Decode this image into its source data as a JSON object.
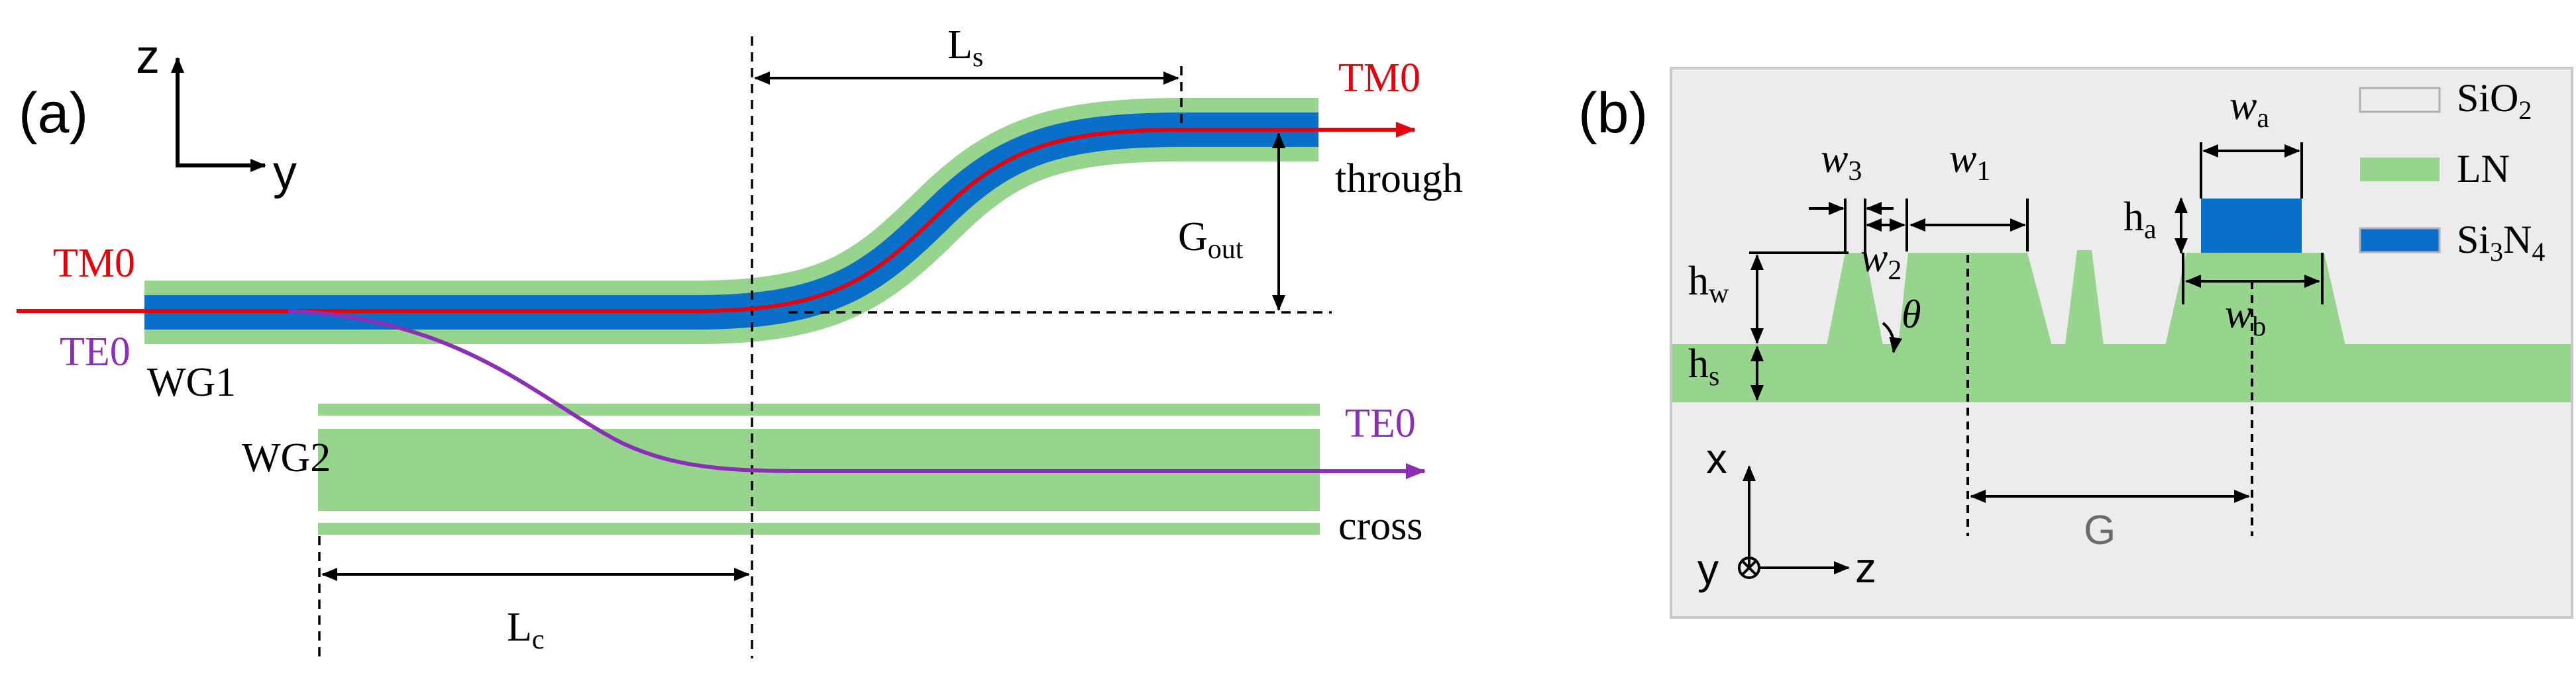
{
  "panel_a": {
    "panel_label": "(a)",
    "axis_z": "z",
    "axis_y": "y",
    "length_s": {
      "main": "L",
      "sub": "s"
    },
    "length_c": {
      "main": "L",
      "sub": "c"
    },
    "gap_out": {
      "main": "G",
      "sub": "out"
    },
    "input_mode_tm": "TM0",
    "input_mode_te": "TE0",
    "output_mode_tm": "TM0",
    "output_mode_te": "TE0",
    "port_through": "through",
    "port_cross": "cross",
    "wg1_label": "WG1",
    "wg2_label": "WG2"
  },
  "panel_b": {
    "panel_label": "(b)",
    "legend": [
      {
        "main": "SiO",
        "sub": "2",
        "color": "#ececec"
      },
      {
        "main": "LN",
        "sub": "",
        "color": "#97d48d"
      },
      {
        "main": "Si",
        "sub": "3",
        "main2": "N",
        "sub2": "4",
        "color": "#0a6fc8"
      }
    ],
    "w_a": {
      "main": "w",
      "sub": "a"
    },
    "w_b": {
      "main": "w",
      "sub": "b"
    },
    "w_1": {
      "main": "w",
      "sub": "1"
    },
    "w_2": {
      "main": "w",
      "sub": "2"
    },
    "w_3": {
      "main": "w",
      "sub": "3"
    },
    "h_a": {
      "main": "h",
      "sub": "a"
    },
    "h_w": {
      "main": "h",
      "sub": "w"
    },
    "h_s": {
      "main": "h",
      "sub": "s"
    },
    "theta": "θ",
    "gap": "G",
    "axis_x": "x",
    "axis_y": "y",
    "axis_z": "z"
  },
  "colors": {
    "ln_green": "#97d48d",
    "sin_blue": "#0a6fc8",
    "sio2_grey": "#ececec",
    "tm_red": "#e8000b",
    "te_purple": "#8a2fb6"
  }
}
